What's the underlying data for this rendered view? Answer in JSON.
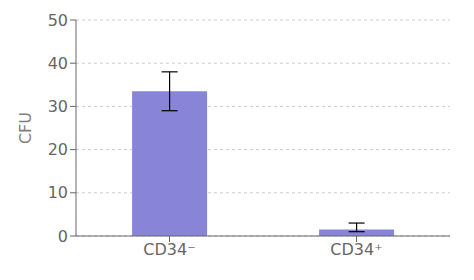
{
  "chart_data": {
    "type": "bar",
    "categories": [
      "CD34⁻",
      "CD34⁺"
    ],
    "values": [
      33.5,
      1.5
    ],
    "errors_up": [
      4.5,
      1.5
    ],
    "errors_down": [
      4.5,
      0.5
    ],
    "ylabel": "CFU",
    "ylim": [
      0,
      50
    ],
    "yticks": [
      0,
      10,
      20,
      30,
      40,
      50
    ],
    "grid": true,
    "color": "#8884d8"
  }
}
